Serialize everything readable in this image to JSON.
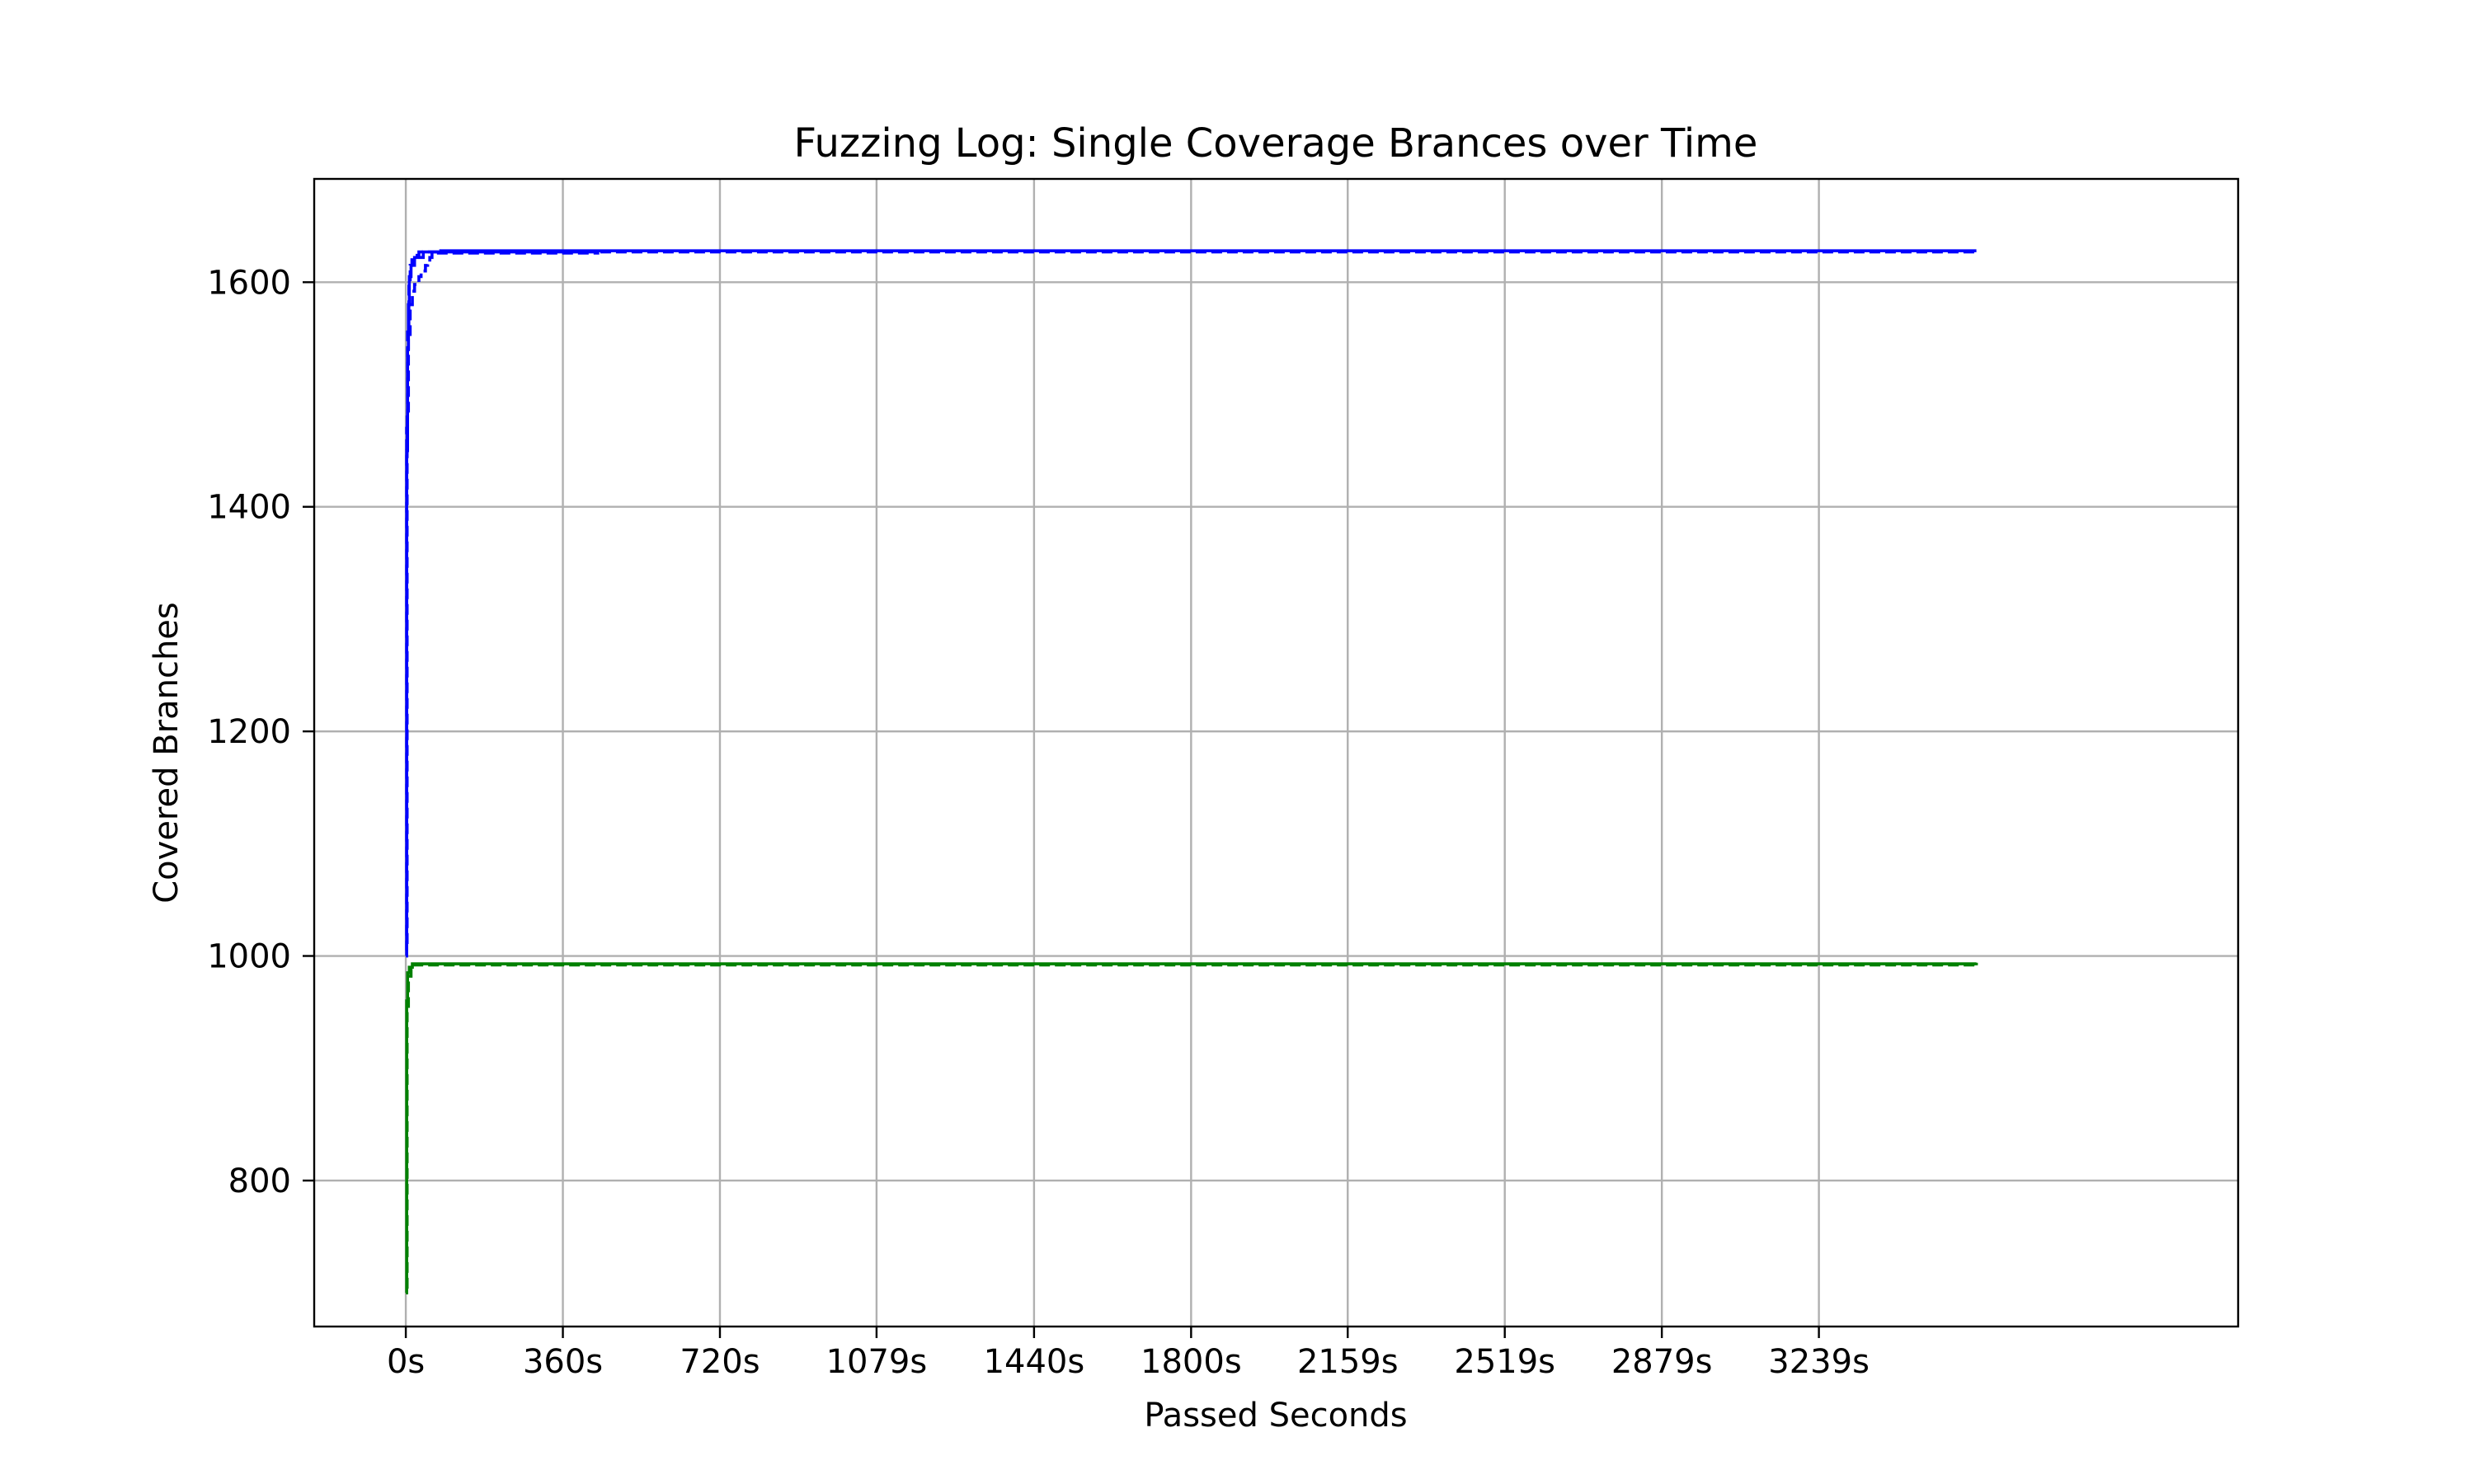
{
  "chart_data": {
    "type": "line",
    "title": "Fuzzing Log: Single Coverage Brances over Time",
    "xlabel": "Passed Seconds",
    "ylabel": "Covered Branches",
    "xlim": [
      -210,
      4200
    ],
    "ylim": [
      670,
      1692
    ],
    "x_ticks": [
      0,
      360,
      720,
      1079,
      1440,
      1800,
      2159,
      2519,
      2879,
      3239
    ],
    "x_tick_labels": [
      "0s",
      "360s",
      "720s",
      "1079s",
      "1440s",
      "1800s",
      "2159s",
      "2519s",
      "2879s",
      "3239s"
    ],
    "y_ticks": [
      800,
      1000,
      1200,
      1400,
      1600
    ],
    "y_tick_labels": [
      "800",
      "1000",
      "1200",
      "1400",
      "1600"
    ],
    "grid": true,
    "legend": "none",
    "series": [
      {
        "color": "#0000ff",
        "style": "solid",
        "x": [
          0,
          2,
          4,
          6,
          8,
          12,
          20,
          40,
          80,
          3600
        ],
        "y": [
          1000,
          1450,
          1540,
          1580,
          1605,
          1615,
          1622,
          1627,
          1628,
          1628
        ]
      },
      {
        "color": "#0000ff",
        "style": "dashed",
        "x": [
          0,
          3,
          6,
          10,
          15,
          20,
          25,
          30,
          35,
          40,
          45,
          50,
          55,
          60,
          440
        ],
        "y": [
          1012,
          1480,
          1550,
          1580,
          1592,
          1598,
          1600,
          1605,
          1608,
          1610,
          1615,
          1618,
          1622,
          1626,
          1628
        ]
      },
      {
        "color": "#0000ff",
        "style": "dashed",
        "x": [
          0,
          2,
          4,
          7,
          10,
          14,
          20,
          30,
          3600
        ],
        "y": [
          1005,
          1470,
          1560,
          1600,
          1615,
          1620,
          1624,
          1627,
          1628
        ]
      },
      {
        "color": "#008000",
        "style": "solid",
        "x": [
          0,
          2,
          4,
          8,
          15,
          3600
        ],
        "y": [
          700,
          960,
          985,
          990,
          993,
          994
        ]
      },
      {
        "color": "#008000",
        "style": "dashed",
        "x": [
          0,
          3,
          6,
          12,
          3600
        ],
        "y": [
          705,
          950,
          982,
          992,
          994
        ]
      }
    ]
  }
}
